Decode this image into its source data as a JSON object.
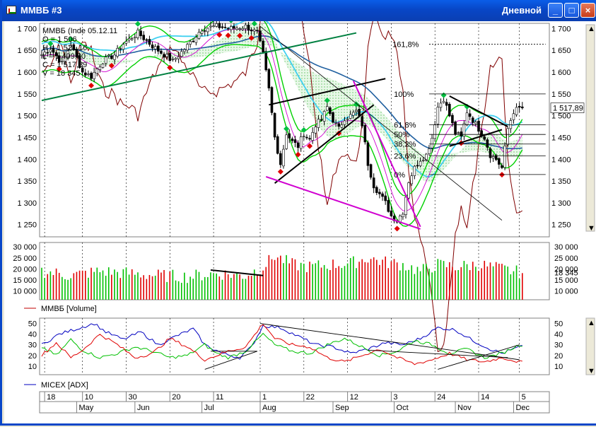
{
  "window": {
    "title": "ММВБ #3",
    "period": "Дневной",
    "buttons": {
      "minimize": "_",
      "maximize": "□",
      "close": "×"
    }
  },
  "info": {
    "symbol_date": "ММВБ (Inde 05.12.11",
    "open": "O = 1 506",
    "high": "H = 1 521,16",
    "low": "L = 1 499,80",
    "close": "C = 1 517,89",
    "volume": "V = 18 345"
  },
  "price_axis": {
    "ticks": [
      {
        "v": 1700,
        "label": "1 700"
      },
      {
        "v": 1650,
        "label": "1 650"
      },
      {
        "v": 1600,
        "label": "1 600"
      },
      {
        "v": 1550,
        "label": "1 550"
      },
      {
        "v": 1500,
        "label": "1 500"
      },
      {
        "v": 1450,
        "label": "1 450"
      },
      {
        "v": 1400,
        "label": "1 400"
      },
      {
        "v": 1350,
        "label": "1 350"
      },
      {
        "v": 1300,
        "label": "1 300"
      },
      {
        "v": 1250,
        "label": "1 250"
      }
    ],
    "last_value": "1 517,89",
    "last": 1517.89
  },
  "volume_axis": {
    "ticks": [
      {
        "v": 30000,
        "label": "30 000"
      },
      {
        "v": 25000,
        "label": "25 000"
      },
      {
        "v": 20000,
        "label": "20 000"
      },
      {
        "v": 15000,
        "label": "15 000"
      },
      {
        "v": 10000,
        "label": "10 000"
      }
    ],
    "last_value": "18 345",
    "legend": "ММВБ [Volume]"
  },
  "adx_axis": {
    "ticks": [
      {
        "v": 50,
        "label": "50"
      },
      {
        "v": 40,
        "label": "40"
      },
      {
        "v": 30,
        "label": "30"
      },
      {
        "v": 20,
        "label": "20"
      },
      {
        "v": 10,
        "label": "10"
      }
    ],
    "legend": "MICEX [ADX]"
  },
  "fibonacci": {
    "levels": [
      {
        "label": "161,8%",
        "v": 1664
      },
      {
        "label": "100%",
        "v": 1550
      },
      {
        "label": "61,8%",
        "v": 1479
      },
      {
        "label": "50%",
        "v": 1457
      },
      {
        "label": "38,2%",
        "v": 1435
      },
      {
        "label": "23,6%",
        "v": 1408
      },
      {
        "label": "0%",
        "v": 1365
      }
    ]
  },
  "time_axis": {
    "days": [
      {
        "i": 1,
        "label": "18"
      },
      {
        "i": 14,
        "label": "10"
      },
      {
        "i": 29,
        "label": "30"
      },
      {
        "i": 44,
        "label": "20"
      },
      {
        "i": 59,
        "label": "11"
      },
      {
        "i": 75,
        "label": "1"
      },
      {
        "i": 90,
        "label": "22"
      },
      {
        "i": 105,
        "label": "12"
      },
      {
        "i": 120,
        "label": "3"
      },
      {
        "i": 135,
        "label": "24"
      },
      {
        "i": 150,
        "label": "14"
      },
      {
        "i": 164,
        "label": "5"
      }
    ],
    "months": [
      {
        "i": 12,
        "label": "May"
      },
      {
        "i": 32,
        "label": "Jun"
      },
      {
        "i": 55,
        "label": "Jul"
      },
      {
        "i": 75,
        "label": "Aug"
      },
      {
        "i": 100,
        "label": "Sep"
      },
      {
        "i": 121,
        "label": "Oct"
      },
      {
        "i": 142,
        "label": "Nov"
      },
      {
        "i": 162,
        "label": "Dec"
      }
    ]
  },
  "colors": {
    "up": "#00c000",
    "down": "#e00000",
    "adx": "#0000c0",
    "trend_green": "#008040",
    "magenta": "#d000d0",
    "cyan": "#40d0f0",
    "blue_ma": "#2060a0",
    "green_ma": "#00d000",
    "brown": "#800000",
    "fractal_up": "#00c040",
    "fractal_down": "#e00000"
  },
  "chart_data": {
    "type": "candlestick",
    "series_note": "daily candles, index ММВБ",
    "anchors": [
      [
        0,
        1640
      ],
      [
        3,
        1655
      ],
      [
        7,
        1620
      ],
      [
        10,
        1665
      ],
      [
        14,
        1600
      ],
      [
        17,
        1590
      ],
      [
        21,
        1625
      ],
      [
        25,
        1640
      ],
      [
        28,
        1665
      ],
      [
        33,
        1690
      ],
      [
        38,
        1660
      ],
      [
        42,
        1640
      ],
      [
        45,
        1625
      ],
      [
        50,
        1660
      ],
      [
        55,
        1700
      ],
      [
        60,
        1705
      ],
      [
        65,
        1700
      ],
      [
        70,
        1705
      ],
      [
        74,
        1690
      ],
      [
        76,
        1640
      ],
      [
        78,
        1560
      ],
      [
        80,
        1450
      ],
      [
        82,
        1390
      ],
      [
        84,
        1460
      ],
      [
        86,
        1440
      ],
      [
        88,
        1430
      ],
      [
        90,
        1460
      ],
      [
        92,
        1445
      ],
      [
        94,
        1480
      ],
      [
        96,
        1490
      ],
      [
        98,
        1520
      ],
      [
        100,
        1490
      ],
      [
        102,
        1470
      ],
      [
        104,
        1495
      ],
      [
        106,
        1500
      ],
      [
        108,
        1510
      ],
      [
        110,
        1480
      ],
      [
        112,
        1390
      ],
      [
        114,
        1340
      ],
      [
        116,
        1320
      ],
      [
        118,
        1300
      ],
      [
        120,
        1270
      ],
      [
        122,
        1260
      ],
      [
        124,
        1280
      ],
      [
        126,
        1350
      ],
      [
        128,
        1380
      ],
      [
        130,
        1400
      ],
      [
        132,
        1410
      ],
      [
        134,
        1450
      ],
      [
        136,
        1520
      ],
      [
        138,
        1540
      ],
      [
        140,
        1500
      ],
      [
        142,
        1460
      ],
      [
        144,
        1450
      ],
      [
        146,
        1510
      ],
      [
        148,
        1490
      ],
      [
        150,
        1470
      ],
      [
        152,
        1450
      ],
      [
        154,
        1410
      ],
      [
        156,
        1400
      ],
      [
        158,
        1380
      ],
      [
        160,
        1470
      ],
      [
        162,
        1510
      ],
      [
        164,
        1517
      ]
    ],
    "volume_anchors": [
      [
        0,
        19000
      ],
      [
        10,
        17000
      ],
      [
        20,
        19000
      ],
      [
        30,
        18000
      ],
      [
        40,
        17000
      ],
      [
        50,
        16500
      ],
      [
        60,
        18000
      ],
      [
        70,
        17000
      ],
      [
        76,
        21000
      ],
      [
        80,
        26000
      ],
      [
        86,
        22000
      ],
      [
        92,
        21000
      ],
      [
        100,
        22000
      ],
      [
        106,
        22500
      ],
      [
        112,
        25000
      ],
      [
        118,
        23000
      ],
      [
        124,
        22000
      ],
      [
        130,
        19000
      ],
      [
        136,
        22000
      ],
      [
        142,
        21000
      ],
      [
        150,
        22000
      ],
      [
        158,
        20000
      ],
      [
        164,
        18345
      ]
    ],
    "adx_anchors": [
      [
        0,
        30
      ],
      [
        6,
        40
      ],
      [
        12,
        45
      ],
      [
        18,
        50
      ],
      [
        22,
        42
      ],
      [
        28,
        35
      ],
      [
        34,
        42
      ],
      [
        40,
        30
      ],
      [
        46,
        38
      ],
      [
        52,
        45
      ],
      [
        56,
        30
      ],
      [
        62,
        22
      ],
      [
        68,
        18
      ],
      [
        72,
        28
      ],
      [
        76,
        48
      ],
      [
        82,
        46
      ],
      [
        88,
        38
      ],
      [
        94,
        30
      ],
      [
        100,
        28
      ],
      [
        106,
        22
      ],
      [
        112,
        26
      ],
      [
        118,
        32
      ],
      [
        124,
        30
      ],
      [
        130,
        36
      ],
      [
        136,
        46
      ],
      [
        142,
        44
      ],
      [
        148,
        34
      ],
      [
        154,
        26
      ],
      [
        158,
        22
      ],
      [
        164,
        28
      ]
    ],
    "pdi_anchors": [
      [
        0,
        28
      ],
      [
        5,
        20
      ],
      [
        10,
        35
      ],
      [
        14,
        25
      ],
      [
        20,
        18
      ],
      [
        26,
        22
      ],
      [
        32,
        28
      ],
      [
        38,
        24
      ],
      [
        44,
        18
      ],
      [
        50,
        20
      ],
      [
        56,
        30
      ],
      [
        60,
        22
      ],
      [
        64,
        18
      ],
      [
        70,
        24
      ],
      [
        76,
        40
      ],
      [
        80,
        30
      ],
      [
        86,
        24
      ],
      [
        92,
        22
      ],
      [
        98,
        30
      ],
      [
        104,
        36
      ],
      [
        110,
        28
      ],
      [
        116,
        20
      ],
      [
        122,
        24
      ],
      [
        128,
        34
      ],
      [
        134,
        30
      ],
      [
        140,
        22
      ],
      [
        146,
        26
      ],
      [
        152,
        18
      ],
      [
        158,
        22
      ],
      [
        164,
        30
      ]
    ],
    "mdi_anchors": [
      [
        0,
        20
      ],
      [
        5,
        32
      ],
      [
        10,
        18
      ],
      [
        14,
        25
      ],
      [
        20,
        40
      ],
      [
        26,
        30
      ],
      [
        32,
        18
      ],
      [
        38,
        22
      ],
      [
        44,
        36
      ],
      [
        50,
        28
      ],
      [
        56,
        16
      ],
      [
        60,
        20
      ],
      [
        64,
        24
      ],
      [
        70,
        28
      ],
      [
        76,
        50
      ],
      [
        80,
        36
      ],
      [
        86,
        30
      ],
      [
        92,
        28
      ],
      [
        98,
        18
      ],
      [
        104,
        14
      ],
      [
        110,
        20
      ],
      [
        116,
        26
      ],
      [
        122,
        18
      ],
      [
        128,
        12
      ],
      [
        134,
        16
      ],
      [
        140,
        22
      ],
      [
        146,
        16
      ],
      [
        152,
        14
      ],
      [
        158,
        18
      ],
      [
        164,
        14
      ]
    ]
  }
}
